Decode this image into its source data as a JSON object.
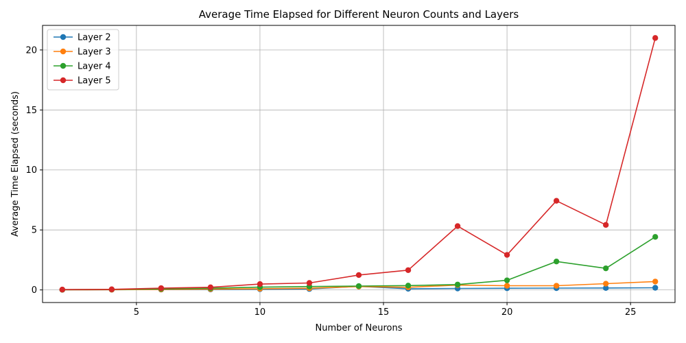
{
  "chart_data": {
    "type": "line",
    "title": "Average Time Elapsed for Different Neuron Counts and Layers",
    "xlabel": "Number of Neurons",
    "ylabel": "Average Time Elapsed (seconds)",
    "xlim": [
      1.2,
      26.8
    ],
    "ylim": [
      -1.05,
      22.05
    ],
    "xticks": [
      5,
      10,
      15,
      20,
      25
    ],
    "yticks": [
      0,
      5,
      10,
      15,
      20
    ],
    "grid": true,
    "legend_position": "top-left",
    "series": [
      {
        "name": "Layer 2",
        "color": "#1f77b4",
        "x": [
          2,
          4,
          6,
          8,
          10,
          12,
          14,
          16,
          18,
          20,
          22,
          24,
          26
        ],
        "values": [
          0.01,
          0.02,
          0.03,
          0.04,
          0.06,
          0.08,
          0.3,
          0.1,
          0.12,
          0.14,
          0.15,
          0.16,
          0.18
        ]
      },
      {
        "name": "Layer 3",
        "color": "#ff7f0e",
        "x": [
          2,
          4,
          6,
          8,
          10,
          12,
          14,
          16,
          18,
          20,
          22,
          24,
          26
        ],
        "values": [
          0.01,
          0.02,
          0.04,
          0.07,
          0.1,
          0.14,
          0.28,
          0.22,
          0.4,
          0.35,
          0.35,
          0.52,
          0.7
        ]
      },
      {
        "name": "Layer 4",
        "color": "#2ca02c",
        "x": [
          2,
          4,
          6,
          8,
          10,
          12,
          14,
          16,
          18,
          20,
          22,
          24,
          26
        ],
        "values": [
          0.02,
          0.04,
          0.09,
          0.14,
          0.23,
          0.28,
          0.32,
          0.36,
          0.45,
          0.8,
          2.37,
          1.8,
          4.42
        ]
      },
      {
        "name": "Layer 5",
        "color": "#d62728",
        "x": [
          2,
          4,
          6,
          8,
          10,
          12,
          14,
          16,
          18,
          20,
          22,
          24,
          26
        ],
        "values": [
          0.03,
          0.05,
          0.15,
          0.22,
          0.49,
          0.58,
          1.24,
          1.65,
          5.32,
          2.92,
          7.43,
          5.42,
          21.0
        ]
      }
    ]
  }
}
